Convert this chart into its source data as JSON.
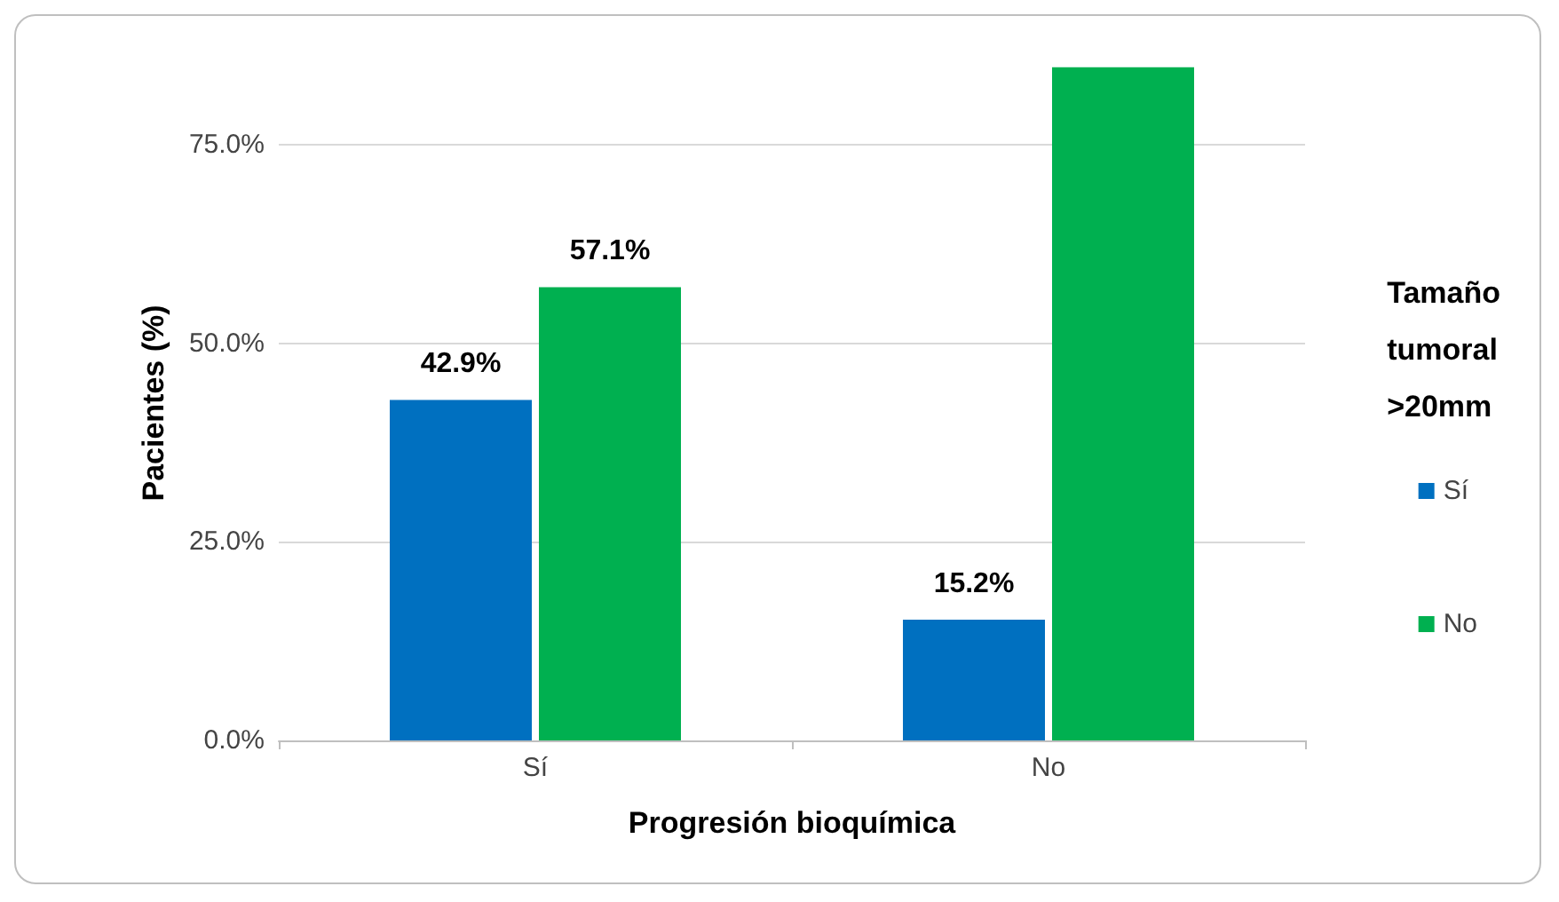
{
  "chart_data": {
    "type": "bar",
    "xlabel": "Progresión bioquímica",
    "ylabel": "Pacientes (%)",
    "legend_title": "Tamaño\ntumoral\n>20mm",
    "categories": [
      "Sí",
      "No"
    ],
    "series": [
      {
        "name": "Sí",
        "color": "#0070c0",
        "values": [
          42.9,
          15.2
        ],
        "value_labels": [
          "42.9%",
          "15.2%"
        ]
      },
      {
        "name": "No",
        "color": "#00b050",
        "values": [
          57.1,
          84.8
        ],
        "value_labels": [
          "57.1%",
          null
        ]
      }
    ],
    "ylim": [
      0,
      85
    ],
    "yticks": [
      {
        "value": 0,
        "label": "0.0%"
      },
      {
        "value": 25,
        "label": "25.0%"
      },
      {
        "value": 50,
        "label": "50.0%"
      },
      {
        "value": 75,
        "label": "75.0%"
      }
    ],
    "grid": "y",
    "legend": "right"
  }
}
